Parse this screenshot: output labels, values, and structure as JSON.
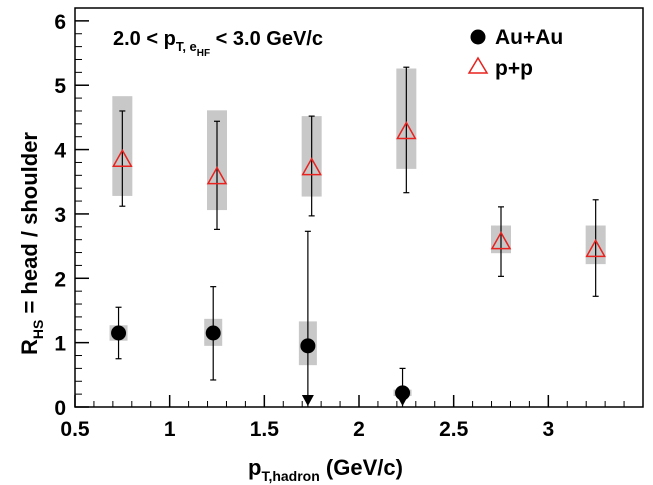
{
  "chart_data": {
    "type": "scatter",
    "annotation": {
      "lead": "2.0 < p",
      "sub": "T, e",
      "subsub": "HF",
      "tail": " < 3.0 GeV/c"
    },
    "xlabel": {
      "main": "p",
      "sub": "T,hadron",
      "tail": " (GeV/c)"
    },
    "ylabel": {
      "main": "R",
      "sub": "HS",
      "tail": " = head / shoulder"
    },
    "xlim": [
      0.5,
      3.5
    ],
    "ylim": [
      0,
      6.2
    ],
    "x_ticks": [
      0.5,
      1,
      1.5,
      2,
      2.5,
      3
    ],
    "x_tick_labels": [
      "0.5",
      "1",
      "1.5",
      "2",
      "2.5",
      "3"
    ],
    "y_ticks": [
      0,
      1,
      2,
      3,
      4,
      5,
      6
    ],
    "y_tick_labels": [
      "0",
      "1",
      "2",
      "3",
      "4",
      "5",
      "6"
    ],
    "grid": false,
    "legend_position": "top-right",
    "colors": {
      "auau": "#000000",
      "pp": "#e8221e",
      "syst_box": "#c8c8c8"
    },
    "series": [
      {
        "name": "Au+Au",
        "marker": "filled-circle",
        "points": [
          {
            "x": 0.73,
            "y": 1.15,
            "err_lo": 0.4,
            "err_hi": 0.4,
            "sys_lo": 0.12,
            "sys_hi": 0.12
          },
          {
            "x": 1.23,
            "y": 1.15,
            "err_lo": 0.73,
            "err_hi": 0.72,
            "sys_lo": 0.2,
            "sys_hi": 0.22
          },
          {
            "x": 1.73,
            "y": 0.95,
            "err_lo": 0.95,
            "err_hi": 1.78,
            "sys_lo": 0.3,
            "sys_hi": 0.38,
            "lower_limit_arrow": true
          },
          {
            "x": 2.23,
            "y": 0.22,
            "err_lo": 0.22,
            "err_hi": 0.38,
            "sys_lo": 0.05,
            "sys_hi": 0.05,
            "lower_limit_arrow": true
          }
        ]
      },
      {
        "name": "p+p",
        "marker": "open-triangle",
        "points": [
          {
            "x": 0.75,
            "y": 3.85,
            "err_lo": 0.73,
            "err_hi": 0.75,
            "sys_lo": 0.57,
            "sys_hi": 0.98
          },
          {
            "x": 1.25,
            "y": 3.58,
            "err_lo": 0.82,
            "err_hi": 0.86,
            "sys_lo": 0.52,
            "sys_hi": 1.03
          },
          {
            "x": 1.75,
            "y": 3.72,
            "err_lo": 0.75,
            "err_hi": 0.8,
            "sys_lo": 0.45,
            "sys_hi": 0.8
          },
          {
            "x": 2.25,
            "y": 4.28,
            "err_lo": 0.95,
            "err_hi": 1.0,
            "sys_lo": 0.58,
            "sys_hi": 0.98
          },
          {
            "x": 2.75,
            "y": 2.57,
            "err_lo": 0.54,
            "err_hi": 0.54,
            "sys_lo": 0.18,
            "sys_hi": 0.25
          },
          {
            "x": 3.25,
            "y": 2.45,
            "err_lo": 0.73,
            "err_hi": 0.77,
            "sys_lo": 0.23,
            "sys_hi": 0.37
          }
        ]
      }
    ]
  }
}
